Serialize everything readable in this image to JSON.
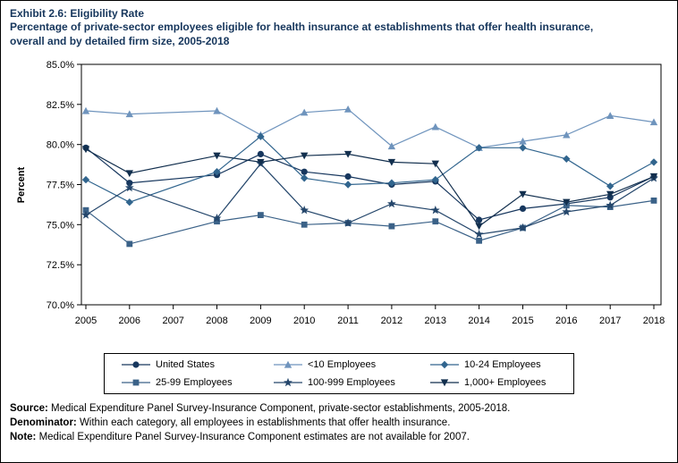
{
  "title": {
    "line1": "Exhibit 2.6: Eligibility Rate",
    "line2": "Percentage of private-sector employees eligible for health insurance at establishments that offer health insurance,",
    "line3": "overall and by detailed firm size, 2005-2018"
  },
  "chart_data": {
    "type": "line",
    "title": "Exhibit 2.6: Eligibility Rate",
    "xlabel": "",
    "ylabel": "Percent",
    "ylim": [
      70.0,
      85.0
    ],
    "ytick_labels": [
      "85.0%",
      "82.5%",
      "80.0%",
      "77.5%",
      "75.0%",
      "72.5%",
      "70.0%"
    ],
    "ytick_values": [
      85.0,
      82.5,
      80.0,
      77.5,
      75.0,
      72.5,
      70.0
    ],
    "grid": false,
    "legend_position": "bottom",
    "missing_year_note": "2007 estimates not available",
    "x": [
      2005,
      2006,
      2007,
      2008,
      2009,
      2010,
      2011,
      2012,
      2013,
      2014,
      2015,
      2016,
      2017,
      2018
    ],
    "series": [
      {
        "name": "United States",
        "marker": "circle",
        "color": "#17375e",
        "values": [
          79.8,
          77.6,
          null,
          78.1,
          79.4,
          78.3,
          78.0,
          77.5,
          77.7,
          75.3,
          76.0,
          76.3,
          76.7,
          78.0
        ]
      },
      {
        "name": "<10 Employees",
        "marker": "triangle-up",
        "color": "#6f94bd",
        "values": [
          82.1,
          81.9,
          null,
          82.1,
          80.6,
          82.0,
          82.2,
          79.9,
          81.1,
          79.8,
          80.2,
          80.6,
          81.8,
          81.4
        ]
      },
      {
        "name": "10-24 Employees",
        "marker": "diamond",
        "color": "#31658e",
        "values": [
          77.8,
          76.4,
          null,
          78.3,
          80.5,
          77.9,
          77.5,
          77.6,
          77.8,
          79.8,
          79.8,
          79.1,
          77.4,
          78.9
        ]
      },
      {
        "name": "25-99 Employees",
        "marker": "square",
        "color": "#3b6288",
        "values": [
          75.9,
          73.8,
          null,
          75.2,
          75.6,
          75.0,
          75.1,
          74.9,
          75.2,
          74.0,
          74.8,
          76.2,
          76.1,
          76.5
        ]
      },
      {
        "name": "100-999 Employees",
        "marker": "star",
        "color": "#24466b",
        "values": [
          75.6,
          77.3,
          null,
          75.4,
          78.8,
          75.9,
          75.1,
          76.3,
          75.9,
          74.4,
          74.8,
          75.8,
          76.2,
          77.9
        ]
      },
      {
        "name": "1,000+ Employees",
        "marker": "triangle-down",
        "color": "#122f4e",
        "values": [
          79.7,
          78.2,
          null,
          79.3,
          78.9,
          79.3,
          79.4,
          78.9,
          78.8,
          74.9,
          76.9,
          76.4,
          76.9,
          78.0
        ]
      }
    ]
  },
  "footnotes": [
    {
      "label": "Source:",
      "text": " Medical Expenditure Panel Survey-Insurance Component, private-sector establishments, 2005-2018."
    },
    {
      "label": "Denominator:",
      "text": " Within each category, all employees in establishments that offer health insurance."
    },
    {
      "label": "Note:",
      "text": " Medical Expenditure Panel Survey-Insurance Component estimates are not available for 2007."
    }
  ]
}
